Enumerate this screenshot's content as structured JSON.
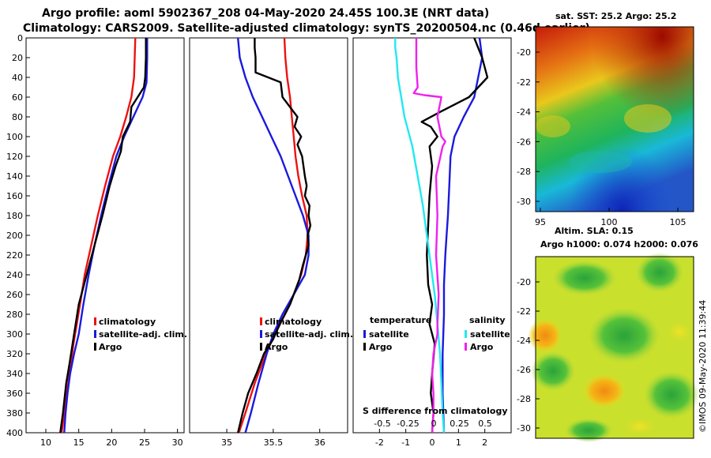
{
  "title_line1": "Argo profile: aoml 5902367_208 04-May-2020 24.45S 100.3E (NRT data)",
  "title_line2": "Climatology: CARS2009. Satellite-adjusted climatology: synTS_20200504.nc (0.46d earlier)",
  "colors": {
    "climatology": "#ee1111",
    "satellite": "#1a1add",
    "argo": "#000000",
    "sat_salinity": "#22e8f0",
    "argo_salinity": "#ee22ee"
  },
  "chart_data": [
    {
      "type": "line",
      "name": "temperature-profile",
      "xlim": [
        7,
        31
      ],
      "ylim": [
        400,
        0
      ],
      "xticks": [
        10,
        15,
        20,
        25,
        30
      ],
      "yticks": [
        0,
        20,
        40,
        60,
        80,
        100,
        120,
        140,
        160,
        180,
        200,
        220,
        240,
        260,
        280,
        300,
        320,
        340,
        360,
        380,
        400
      ],
      "legend": [
        "climatology",
        "satellite-adj. clim.",
        "Argo"
      ],
      "series": [
        {
          "name": "climatology",
          "color": "#ee1111",
          "x": [
            23.6,
            23.5,
            23.4,
            23.0,
            22.2,
            21.3,
            20.2,
            19.0,
            17.9,
            16.9,
            15.9,
            15.2,
            14.7,
            14.2,
            13.8,
            13.4,
            13.0,
            12.7,
            12.4
          ],
          "y": [
            0,
            20,
            40,
            60,
            80,
            100,
            120,
            150,
            180,
            210,
            240,
            270,
            290,
            310,
            330,
            350,
            370,
            385,
            400
          ]
        },
        {
          "name": "satellite-adj. clim.",
          "color": "#1a1add",
          "x": [
            25.4,
            25.4,
            25.3,
            24.7,
            23.3,
            21.9,
            20.7,
            19.5,
            18.4,
            17.4,
            16.5,
            15.7,
            15.0,
            14.3,
            13.7,
            13.3,
            13.0,
            12.8
          ],
          "y": [
            0,
            20,
            45,
            60,
            80,
            100,
            120,
            150,
            180,
            210,
            240,
            270,
            300,
            320,
            340,
            360,
            380,
            400
          ]
        },
        {
          "name": "Argo",
          "color": "#000000",
          "x": [
            25.2,
            25.2,
            25.1,
            24.9,
            23.0,
            22.8,
            21.7,
            21.4,
            20.6,
            19.7,
            18.6,
            17.4,
            16.2,
            15.0,
            14.3,
            13.6,
            13.1,
            12.6,
            12.2
          ],
          "y": [
            0,
            20,
            40,
            50,
            70,
            85,
            100,
            115,
            130,
            150,
            180,
            210,
            240,
            270,
            300,
            330,
            350,
            380,
            400
          ]
        }
      ]
    },
    {
      "type": "line",
      "name": "salinity-profile",
      "xlim": [
        34.6,
        36.3
      ],
      "ylim": [
        400,
        0
      ],
      "xticks": [
        35,
        35.5,
        36
      ],
      "tick_labels": [
        "35",
        "35.5",
        "36"
      ],
      "legend": [
        "climatology",
        "satellite-adj. clim.",
        "Argo"
      ],
      "series": [
        {
          "name": "climatology",
          "color": "#ee1111",
          "x": [
            35.62,
            35.63,
            35.65,
            35.68,
            35.7,
            35.72,
            35.74,
            35.77,
            35.81,
            35.86,
            35.87,
            35.85,
            35.8,
            35.68,
            35.52,
            35.42,
            35.3,
            35.2,
            35.13
          ],
          "y": [
            0,
            20,
            40,
            60,
            80,
            100,
            120,
            140,
            160,
            180,
            200,
            220,
            240,
            270,
            300,
            320,
            350,
            380,
            400
          ]
        },
        {
          "name": "satellite-adj. clim.",
          "color": "#1a1add",
          "x": [
            35.12,
            35.14,
            35.2,
            35.28,
            35.38,
            35.48,
            35.58,
            35.66,
            35.74,
            35.82,
            35.88,
            35.88,
            35.84,
            35.72,
            35.6,
            35.5,
            35.43,
            35.34,
            35.26,
            35.2
          ],
          "y": [
            0,
            20,
            40,
            60,
            80,
            100,
            120,
            140,
            160,
            180,
            200,
            220,
            240,
            260,
            280,
            300,
            320,
            350,
            380,
            400
          ]
        },
        {
          "name": "Argo",
          "color": "#000000",
          "x": [
            35.3,
            35.3,
            35.31,
            35.31,
            35.58,
            35.6,
            35.76,
            35.73,
            35.8,
            35.76,
            35.81,
            35.84,
            35.86,
            35.84,
            35.89,
            35.88,
            35.9,
            35.87,
            35.88,
            35.85,
            35.82,
            35.78,
            35.68,
            35.57,
            35.5,
            35.4,
            35.32,
            35.23,
            35.17,
            35.12
          ],
          "y": [
            0,
            10,
            20,
            35,
            45,
            60,
            80,
            90,
            100,
            108,
            120,
            140,
            150,
            160,
            170,
            180,
            190,
            200,
            210,
            220,
            230,
            245,
            270,
            290,
            305,
            320,
            340,
            360,
            380,
            400
          ]
        }
      ]
    },
    {
      "type": "line",
      "name": "difference-from-climatology",
      "xlim": [
        -3,
        3
      ],
      "ylim": [
        400,
        0
      ],
      "xticks": [
        -2,
        -1,
        0,
        1,
        2
      ],
      "salinity_scale_ticks": [
        -0.5,
        -0.25,
        0,
        0.25,
        0.5
      ],
      "xlabel": "S difference from climatology",
      "legend": {
        "temperature": [
          "satellite",
          "Argo"
        ],
        "salinity": [
          "satellite",
          "Argo"
        ]
      },
      "legend_titles": [
        "temperature",
        "salinity"
      ],
      "series": [
        {
          "name": "temperature satellite",
          "color": "#1a1add",
          "x": [
            1.8,
            1.9,
            1.75,
            1.6,
            1.2,
            0.85,
            0.7,
            0.65,
            0.6,
            0.55,
            0.5,
            0.45,
            0.45,
            0.4,
            0.4,
            0.45
          ],
          "y": [
            0,
            20,
            40,
            60,
            80,
            100,
            120,
            150,
            180,
            200,
            220,
            250,
            280,
            320,
            360,
            400
          ]
        },
        {
          "name": "temperature Argo",
          "color": "#000000",
          "x": [
            1.6,
            1.9,
            2.1,
            1.4,
            0.3,
            -0.4,
            -0.05,
            0.2,
            -0.1,
            0.0,
            -0.1,
            -0.15,
            -0.2,
            -0.15,
            0.0,
            -0.1,
            0.1,
            0.0,
            -0.05,
            0.05,
            0.0
          ],
          "y": [
            0,
            20,
            40,
            60,
            75,
            85,
            90,
            100,
            110,
            130,
            160,
            190,
            220,
            250,
            270,
            290,
            310,
            340,
            360,
            380,
            400
          ]
        },
        {
          "name": "salinity satellite",
          "color": "#22e8f0",
          "x": [
            -1.4,
            -1.4,
            -1.35,
            -1.3,
            -1.05,
            -0.75,
            -0.55,
            -0.35,
            -0.2,
            -0.05,
            0.1,
            0.2,
            0.3,
            0.35,
            0.4,
            0.45
          ],
          "y": [
            0,
            10,
            20,
            40,
            80,
            110,
            140,
            170,
            200,
            230,
            260,
            290,
            320,
            350,
            380,
            400
          ]
        },
        {
          "name": "salinity Argo",
          "color": "#ee22ee",
          "x": [
            -0.6,
            -0.6,
            -0.6,
            -0.55,
            -0.7,
            -0.3,
            0.35,
            0.2,
            0.35,
            0.5,
            0.4,
            0.15,
            0.2,
            0.15,
            0.25,
            0.2,
            0.2,
            0.05,
            0.0,
            0.05,
            0.05,
            0.0
          ],
          "y": [
            0,
            10,
            30,
            50,
            56,
            58,
            60,
            80,
            100,
            105,
            110,
            140,
            180,
            220,
            260,
            290,
            300,
            320,
            340,
            360,
            380,
            400
          ]
        }
      ]
    }
  ],
  "map_top": {
    "title": "sat. SST: 25.2 Argo: 25.2",
    "yticks": [
      "-20",
      "-22",
      "-24",
      "-26",
      "-28",
      "-30"
    ],
    "xticks": [
      "95",
      "100",
      "105"
    ]
  },
  "map_bottom": {
    "title_line1": "Altim. SLA: 0.15",
    "title_line2": "Argo h1000: 0.074 h2000: 0.076",
    "yticks": [
      "-20",
      "-22",
      "-24",
      "-26",
      "-28",
      "-30"
    ]
  },
  "credit": "©IMOS 09-May-2020 11:39:44"
}
